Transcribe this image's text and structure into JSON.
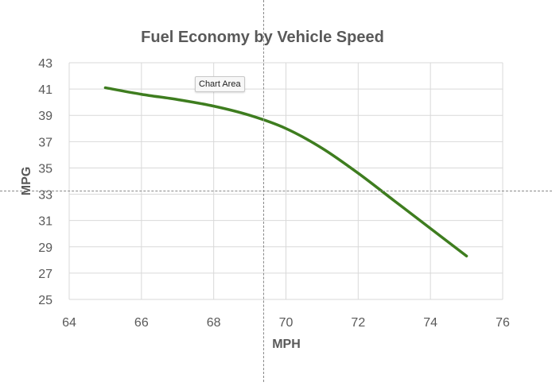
{
  "tooltip": {
    "text": "Chart Area"
  },
  "chart_data": {
    "type": "line",
    "title": "Fuel Economy by Vehicle Speed",
    "xlabel": "MPH",
    "ylabel": "MPG",
    "xlim": [
      64,
      76
    ],
    "ylim": [
      25,
      43
    ],
    "xticks": [
      64,
      66,
      68,
      70,
      72,
      74,
      76
    ],
    "yticks": [
      25,
      27,
      29,
      31,
      33,
      35,
      37,
      39,
      41,
      43
    ],
    "grid": true,
    "legend": "none",
    "series": [
      {
        "color": "#3e7d1f",
        "smooth": true,
        "x": [
          65,
          66,
          67,
          68,
          69,
          70,
          71,
          72,
          73,
          74,
          75
        ],
        "y": [
          41.1,
          40.6,
          40.2,
          39.7,
          39.0,
          38.0,
          36.5,
          34.6,
          32.5,
          30.4,
          28.3
        ]
      }
    ]
  }
}
